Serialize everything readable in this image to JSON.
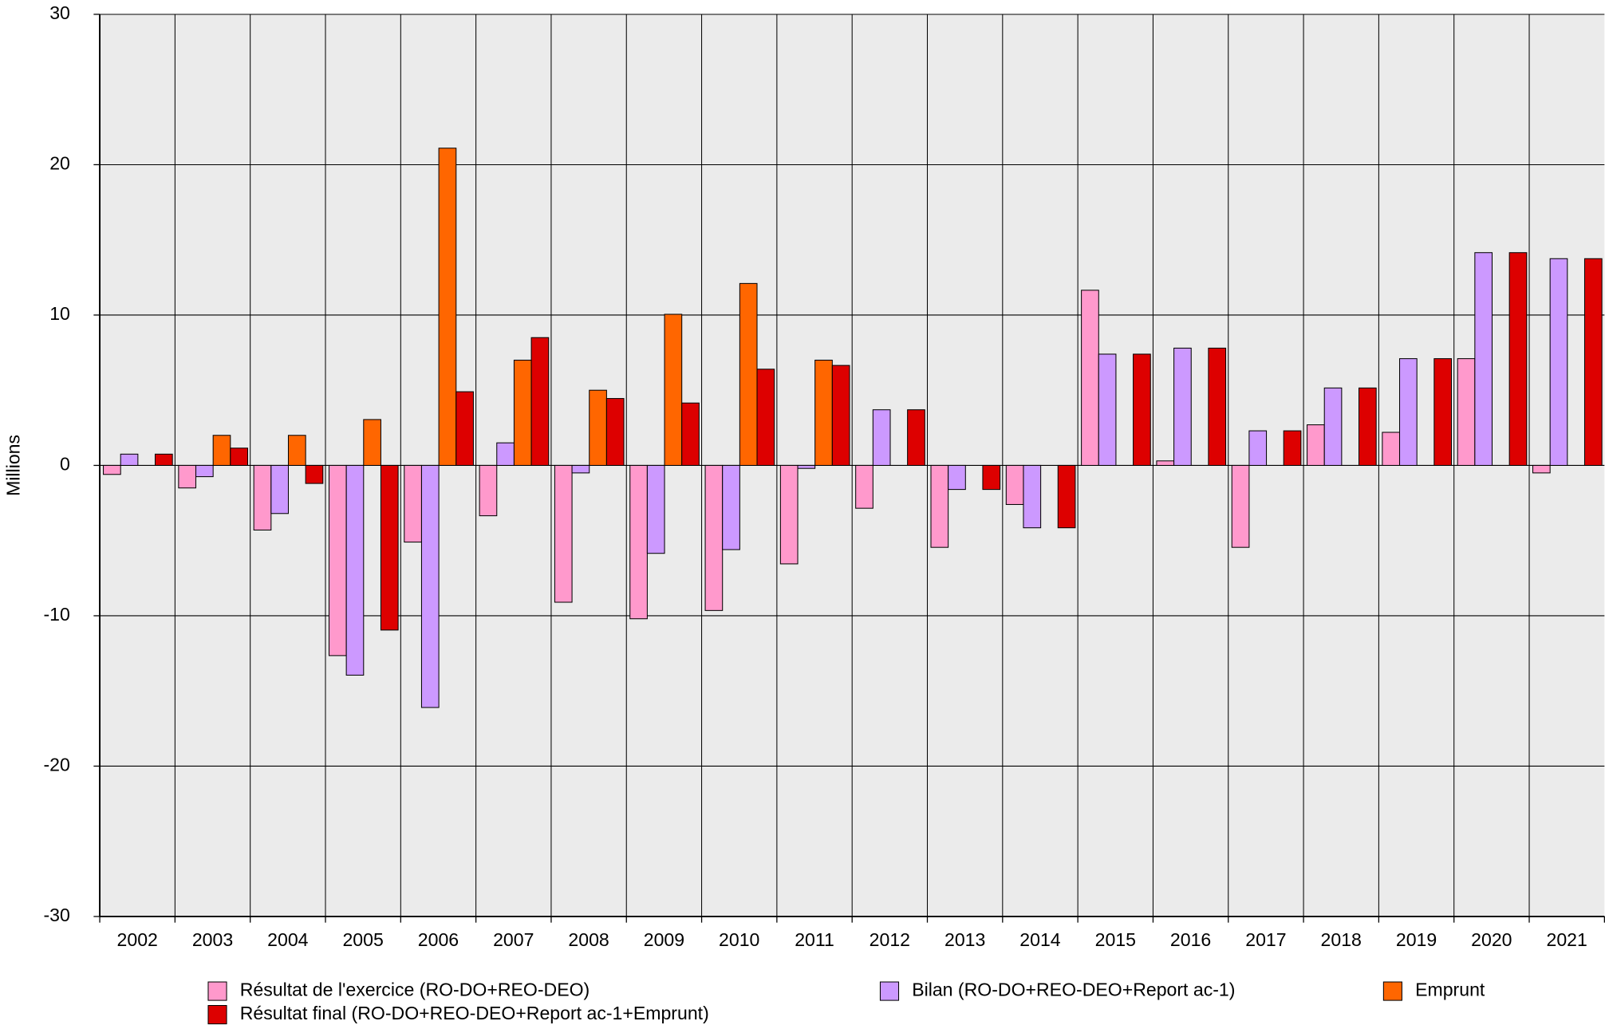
{
  "chart_data": {
    "type": "bar",
    "y_label": "Millions",
    "categories": [
      "2002",
      "2003",
      "2004",
      "2005",
      "2006",
      "2007",
      "2008",
      "2009",
      "2010",
      "2011",
      "2012",
      "2013",
      "2014",
      "2015",
      "2016",
      "2017",
      "2018",
      "2019",
      "2020",
      "2021"
    ],
    "series": [
      {
        "name": "Résultat de l'exercice (RO-DO+REO-DEO)",
        "color": "#ff99cc",
        "values": [
          -0.6,
          -1.5,
          -4.3,
          -12.65,
          -5.1,
          -3.35,
          -9.1,
          -10.2,
          -9.65,
          -6.55,
          -2.85,
          -5.45,
          -2.6,
          11.65,
          0.3,
          -5.45,
          2.7,
          2.2,
          7.1,
          -0.5
        ]
      },
      {
        "name": "Bilan (RO-DO+REO-DEO+Report ac-1)",
        "color": "#cc99ff",
        "values": [
          0.75,
          -0.75,
          -3.2,
          -13.95,
          -16.1,
          1.5,
          -0.5,
          -5.85,
          -5.6,
          -0.2,
          3.7,
          -1.6,
          -4.15,
          7.4,
          7.8,
          2.3,
          5.15,
          7.1,
          14.15,
          13.75
        ]
      },
      {
        "name": "Emprunt",
        "color": "#ff6600",
        "values": [
          0,
          2.0,
          2.0,
          3.05,
          21.1,
          7.0,
          5.0,
          10.05,
          12.1,
          7.0,
          0,
          0,
          0,
          0,
          0,
          0,
          0,
          0,
          0,
          0
        ]
      },
      {
        "name": "Résultat final (RO-DO+REO-DEO+Report ac-1+Emprunt)",
        "color": "#dd0000",
        "values": [
          0.75,
          1.15,
          -1.2,
          -10.95,
          4.9,
          8.5,
          4.45,
          4.15,
          6.4,
          6.65,
          3.7,
          -1.6,
          -4.15,
          7.4,
          7.8,
          2.3,
          5.15,
          7.1,
          14.15,
          13.75
        ]
      }
    ],
    "ylim": [
      -30,
      30
    ],
    "yticks": [
      -30,
      -20,
      -10,
      0,
      10,
      20,
      30
    ],
    "grid": true,
    "legend": "bottom"
  }
}
